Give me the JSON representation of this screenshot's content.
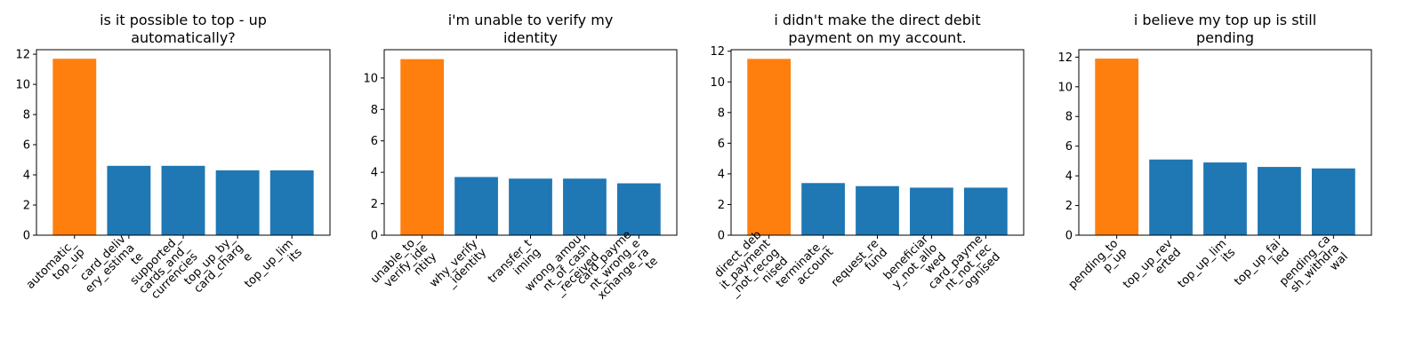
{
  "chart_data": [
    {
      "type": "bar",
      "title": [
        "is it possible to top - up",
        "automatically?"
      ],
      "categories": [
        [
          "automatic_",
          "top_up"
        ],
        [
          "card_deliv",
          "ery_estima",
          "te"
        ],
        [
          "supported_",
          "cards_and_",
          "currencies"
        ],
        [
          "top_up_by_",
          "card_charg",
          "e"
        ],
        [
          "top_up_lim",
          "its"
        ]
      ],
      "values": [
        11.7,
        4.6,
        4.6,
        4.3,
        4.3
      ],
      "highlight_index": 0,
      "ylim": [
        0,
        12.3
      ],
      "yticks": [
        0,
        2,
        4,
        6,
        8,
        10,
        12
      ]
    },
    {
      "type": "bar",
      "title": [
        "i'm unable to verify my",
        "identity"
      ],
      "categories": [
        [
          "unable_to_",
          "verify_ide",
          "ntity"
        ],
        [
          "why_verify",
          "_identity"
        ],
        [
          "transfer_t",
          "iming"
        ],
        [
          "wrong_amou",
          "nt_of_cash",
          "_received"
        ],
        [
          "card_payme",
          "nt_wrong_e",
          "xchange_ra",
          "te"
        ]
      ],
      "values": [
        11.2,
        3.7,
        3.6,
        3.6,
        3.3
      ],
      "highlight_index": 0,
      "ylim": [
        0,
        11.8
      ],
      "yticks": [
        0,
        2,
        4,
        6,
        8,
        10
      ]
    },
    {
      "type": "bar",
      "title": [
        "i didn't make the direct debit",
        "payment on my account."
      ],
      "categories": [
        [
          "direct_deb",
          "it_payment",
          "_not_recog",
          "nised"
        ],
        [
          "terminate_",
          "account"
        ],
        [
          "request_re",
          "fund"
        ],
        [
          "beneficiar",
          "y_not_allo",
          "wed"
        ],
        [
          "card_payme",
          "nt_not_rec",
          "ognised"
        ]
      ],
      "values": [
        11.5,
        3.4,
        3.2,
        3.1,
        3.1
      ],
      "highlight_index": 0,
      "ylim": [
        0,
        12.1
      ],
      "yticks": [
        0,
        2,
        4,
        6,
        8,
        10,
        12
      ]
    },
    {
      "type": "bar",
      "title": [
        "i believe my top up is still",
        "pending"
      ],
      "categories": [
        [
          "pending_to",
          "p_up"
        ],
        [
          "top_up_rev",
          "erted"
        ],
        [
          "top_up_lim",
          "its"
        ],
        [
          "top_up_fai",
          "led"
        ],
        [
          "pending_ca",
          "sh_withdra",
          "wal"
        ]
      ],
      "values": [
        11.9,
        5.1,
        4.9,
        4.6,
        4.5
      ],
      "highlight_index": 0,
      "ylim": [
        0,
        12.5
      ],
      "yticks": [
        0,
        2,
        4,
        6,
        8,
        10,
        12
      ]
    }
  ],
  "colors": {
    "highlight": "#ff7f0e",
    "default": "#1f77b4"
  }
}
